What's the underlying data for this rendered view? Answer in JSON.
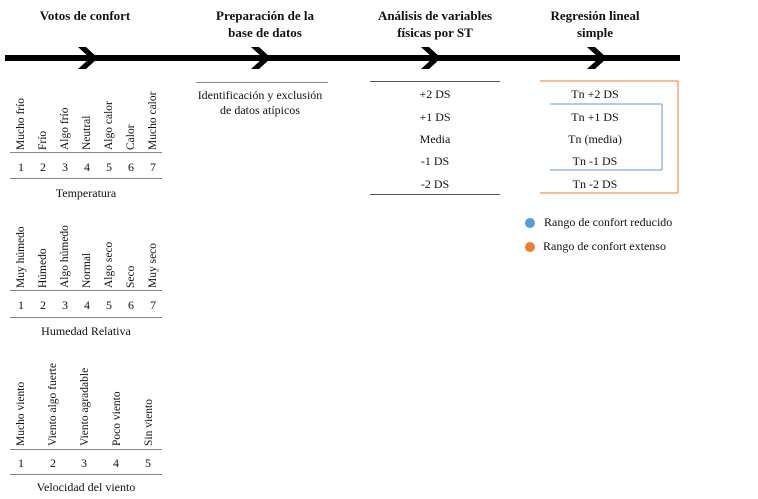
{
  "headers": {
    "votos": "Votos de confort",
    "preparacion_l1": "Preparación de la",
    "preparacion_l2": "base de datos",
    "analisis_l1": "Análisis de variables",
    "analisis_l2": "físicas por ST",
    "regresion_l1": "Regresión lineal",
    "regresion_l2": "simple"
  },
  "preparacion_text_l1": "Identificación y exclusión",
  "preparacion_text_l2": "de datos atípicos",
  "temperatura": {
    "labels": [
      "Mucho frío",
      "Frío",
      "Algo frío",
      "Neutral",
      "Algo calor",
      "Calor",
      "Mucho calor"
    ],
    "values": [
      "1",
      "2",
      "3",
      "4",
      "5",
      "6",
      "7"
    ],
    "caption": "Temperatura"
  },
  "humedad": {
    "labels": [
      "Muy húmedo",
      "Húmedo",
      "Algo húmedo",
      "Normal",
      "Algo seco",
      "Seco",
      "Muy seco"
    ],
    "values": [
      "1",
      "2",
      "3",
      "4",
      "5",
      "6",
      "7"
    ],
    "caption": "Humedad Relativa"
  },
  "viento": {
    "labels": [
      "Mucho viento",
      "Viento algo fuerte",
      "Viento agradable",
      "Poco viento",
      "Sin viento"
    ],
    "values": [
      "1",
      "2",
      "3",
      "4",
      "5"
    ],
    "caption": "Velocidad del viento"
  },
  "ds": [
    "+2 DS",
    "+1 DS",
    "Media",
    "-1 DS",
    "-2 DS"
  ],
  "tn": [
    "Tn +2 DS",
    "Tn +1 DS",
    "Tn (media)",
    "Tn -1 DS",
    "Tn -2 DS"
  ],
  "legend": {
    "reducido": "Rango de confort reducido",
    "extenso": "Rango de confort extenso"
  },
  "colors": {
    "reducido": "#5b9bd5",
    "extenso": "#ed7d31",
    "line": "#000000"
  }
}
